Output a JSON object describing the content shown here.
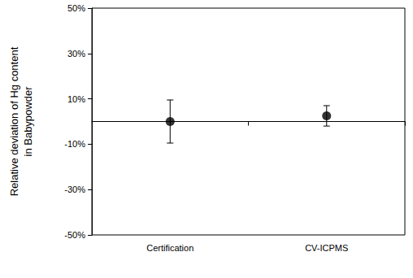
{
  "chart_data": {
    "type": "scatter",
    "ylabel": "Relative deviation of Hg content\nin Babypowder",
    "categories": [
      "Certification",
      "CV-ICPMS"
    ],
    "values": [
      0,
      2.5
    ],
    "errors": [
      9.5,
      4.5
    ],
    "color": "#000000",
    "marker": "circle",
    "ylim": [
      -50,
      50
    ],
    "yticks": [
      {
        "value": -50,
        "label": "-50%"
      },
      {
        "value": -30,
        "label": "-30%"
      },
      {
        "value": -10,
        "label": "-10%"
      },
      {
        "value": 10,
        "label": "10%"
      },
      {
        "value": 30,
        "label": "30%"
      },
      {
        "value": 50,
        "label": "50%"
      }
    ],
    "grid": false
  }
}
